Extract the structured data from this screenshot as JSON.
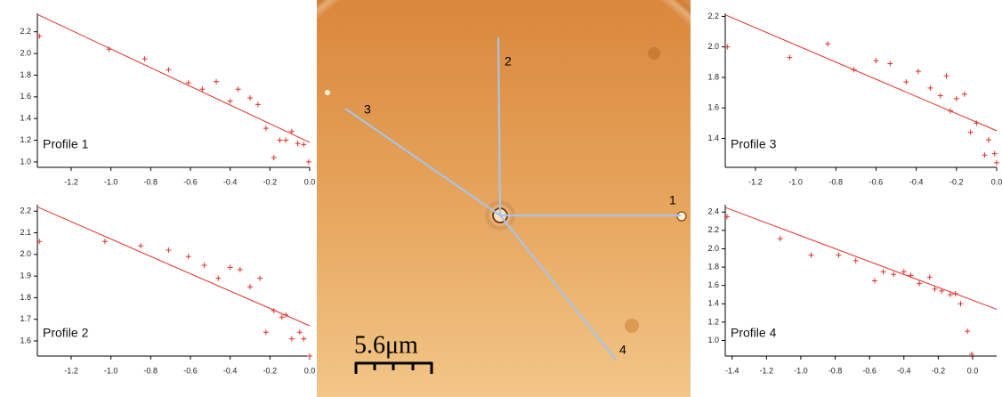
{
  "chart_data": [
    {
      "type": "scatter",
      "annotation": "Profile 1",
      "color": "#e0302a",
      "x": [
        -1.36,
        -1.01,
        -0.83,
        -0.71,
        -0.61,
        -0.54,
        -0.47,
        -0.4,
        -0.36,
        -0.3,
        -0.26,
        -0.22,
        -0.18,
        -0.15,
        -0.12,
        -0.09,
        -0.06,
        -0.03,
        -0.005
      ],
      "values": [
        2.16,
        2.04,
        1.95,
        1.85,
        1.73,
        1.67,
        1.74,
        1.56,
        1.67,
        1.59,
        1.53,
        1.31,
        1.04,
        1.2,
        1.2,
        1.28,
        1.17,
        1.16,
        1.0
      ],
      "fit": {
        "x": [
          -1.37,
          0.0
        ],
        "y": [
          2.36,
          1.18
        ]
      },
      "xlim": [
        -1.37,
        0.0
      ],
      "ylim": [
        0.95,
        2.37
      ],
      "xticks": [
        -1.2,
        {
          "value": -1,
          "label": "-1.0"
        },
        -0.8,
        -0.6,
        -0.4,
        -0.2,
        {
          "value": 0,
          "label": "0.0"
        }
      ],
      "yticks": [
        {
          "value": 1,
          "label": "1.0"
        },
        1.2,
        1.4,
        1.6,
        1.8,
        {
          "value": 2,
          "label": "2.0"
        },
        2.2
      ]
    },
    {
      "type": "scatter",
      "annotation": "Profile 2",
      "color": "#e0302a",
      "x": [
        -1.36,
        -1.03,
        -0.85,
        -0.71,
        -0.61,
        -0.53,
        -0.46,
        -0.4,
        -0.35,
        -0.3,
        -0.25,
        -0.22,
        -0.18,
        -0.14,
        -0.12,
        -0.09,
        -0.05,
        -0.03,
        0.0
      ],
      "values": [
        2.06,
        2.06,
        2.04,
        2.02,
        1.99,
        1.95,
        1.89,
        1.94,
        1.93,
        1.85,
        1.89,
        1.64,
        1.74,
        1.71,
        1.72,
        1.61,
        1.64,
        1.61,
        1.53
      ],
      "fit": {
        "x": [
          -1.37,
          0.0
        ],
        "y": [
          2.22,
          1.67
        ]
      },
      "xlim": [
        -1.37,
        0.0
      ],
      "ylim": [
        1.53,
        2.23
      ],
      "xticks": [
        -1.2,
        {
          "value": -1,
          "label": "-1.0"
        },
        -0.8,
        -0.6,
        -0.4,
        -0.2,
        {
          "value": 0,
          "label": "0.0"
        }
      ],
      "yticks": [
        1.6,
        1.7,
        1.8,
        1.9,
        {
          "value": 2,
          "label": "2.0"
        },
        2.1,
        2.2
      ]
    },
    {
      "type": "scatter",
      "annotation": "Profile 3",
      "color": "#e0302a",
      "x": [
        -1.34,
        -1.03,
        -0.84,
        -0.71,
        -0.6,
        -0.53,
        -0.45,
        -0.39,
        -0.33,
        -0.28,
        -0.25,
        -0.23,
        -0.2,
        -0.16,
        -0.13,
        -0.1,
        -0.06,
        -0.04,
        -0.01,
        0.0
      ],
      "values": [
        2.0,
        1.93,
        2.02,
        1.85,
        1.91,
        1.89,
        1.77,
        1.84,
        1.73,
        1.68,
        1.81,
        1.58,
        1.66,
        1.69,
        1.44,
        1.5,
        1.29,
        1.39,
        1.3,
        1.24
      ],
      "fit": {
        "x": [
          -1.35,
          0.0
        ],
        "y": [
          2.21,
          1.45
        ]
      },
      "xlim": [
        -1.35,
        0.0
      ],
      "ylim": [
        1.21,
        2.22
      ],
      "xticks": [
        -1.2,
        {
          "value": -1,
          "label": "-1.0"
        },
        -0.8,
        -0.6,
        -0.4,
        -0.2,
        {
          "value": 0,
          "label": "0.0"
        }
      ],
      "yticks": [
        1.4,
        1.6,
        1.8,
        {
          "value": 2,
          "label": "2.0"
        },
        2.2
      ]
    },
    {
      "type": "scatter",
      "annotation": "Profile 4",
      "color": "#e0302a",
      "x": [
        -1.43,
        -1.12,
        -0.94,
        -0.78,
        -0.68,
        -0.57,
        -0.52,
        -0.46,
        -0.4,
        -0.36,
        -0.31,
        -0.25,
        -0.22,
        -0.18,
        -0.13,
        -0.1,
        -0.07,
        -0.03,
        -0.005
      ],
      "values": [
        2.35,
        2.11,
        1.93,
        1.93,
        1.87,
        1.65,
        1.75,
        1.72,
        1.75,
        1.71,
        1.62,
        1.69,
        1.56,
        1.54,
        1.5,
        1.51,
        1.4,
        1.1,
        0.85
      ],
      "fit": {
        "x": [
          -1.44,
          0.14
        ],
        "y": [
          2.45,
          1.34
        ]
      },
      "xlim": [
        -1.44,
        0.14
      ],
      "ylim": [
        0.83,
        2.48
      ],
      "xticks": [
        -1.4,
        -1.2,
        {
          "value": -1,
          "label": "-1.0"
        },
        -0.8,
        -0.6,
        -0.4,
        -0.2,
        {
          "value": 0,
          "label": "0.0"
        }
      ],
      "yticks": [
        {
          "value": 1,
          "label": "1.0"
        },
        1.2,
        1.4,
        1.6,
        1.8,
        {
          "value": 2,
          "label": "2.0"
        },
        2.2,
        2.4
      ]
    }
  ],
  "image": {
    "line_labels": [
      "1",
      "2",
      "3",
      "4"
    ],
    "scale_bar": "5.6μm"
  }
}
